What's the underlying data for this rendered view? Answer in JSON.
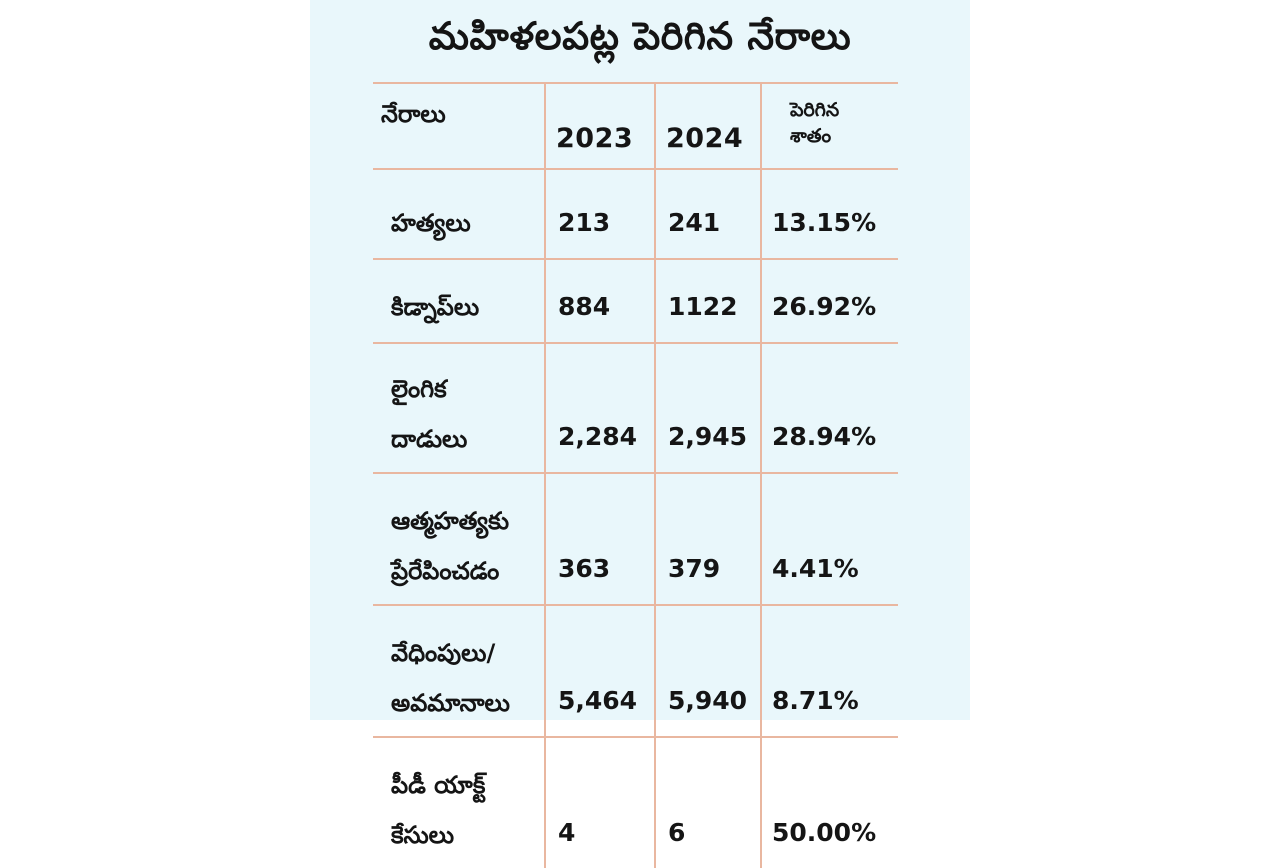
{
  "title": "మహిళలపట్ల పెరిగిన నేరాలు",
  "table": {
    "headers": {
      "category": "నేరాలు",
      "year1": "2023",
      "year2": "2024",
      "change_line1": "పెరిగిన",
      "change_line2": "శాతం"
    },
    "rows": [
      {
        "crime_line1": "హత్యలు",
        "crime_line2": "",
        "y2023": "213",
        "y2024": "241",
        "change": "13.15%"
      },
      {
        "crime_line1": "కిడ్నాప్‌లు",
        "crime_line2": "",
        "y2023": "884",
        "y2024": "1122",
        "change": "26.92%"
      },
      {
        "crime_line1": "లైంగిక",
        "crime_line2": "దాడులు",
        "y2023": "2,284",
        "y2024": "2,945",
        "change": "28.94%"
      },
      {
        "crime_line1": "ఆత్మహత్యకు",
        "crime_line2": "ప్రేరేపించడం",
        "y2023": "363",
        "y2024": "379",
        "change": "4.41%"
      },
      {
        "crime_line1": "వేధింపులు/",
        "crime_line2": "అవమానాలు",
        "y2023": "5,464",
        "y2024": "5,940",
        "change": "8.71%"
      },
      {
        "crime_line1": "పీడీ యాక్ట్",
        "crime_line2": "కేసులు",
        "y2023": "4",
        "y2024": "6",
        "change": "50.00%"
      }
    ]
  },
  "chart_data": {
    "type": "table",
    "title": "మహిళలపట్ల పెరిగిన నేరాలు",
    "columns": [
      "నేరాలు",
      "2023",
      "2024",
      "పెరిగిన శాతం"
    ],
    "categories": [
      "హత్యలు",
      "కిడ్నాప్‌లు",
      "లైంగిక దాడులు",
      "ఆత్మహత్యకు ప్రేరేపించడం",
      "వేధింపులు/ అవమానాలు",
      "పీడీ యాక్ట్ కేసులు"
    ],
    "series": [
      {
        "name": "2023",
        "values": [
          213,
          884,
          2284,
          363,
          5464,
          4
        ]
      },
      {
        "name": "2024",
        "values": [
          241,
          1122,
          2945,
          379,
          5940,
          6
        ]
      },
      {
        "name": "పెరిగిన శాతం",
        "values": [
          13.15,
          26.92,
          28.94,
          4.41,
          8.71,
          50.0
        ]
      }
    ]
  }
}
